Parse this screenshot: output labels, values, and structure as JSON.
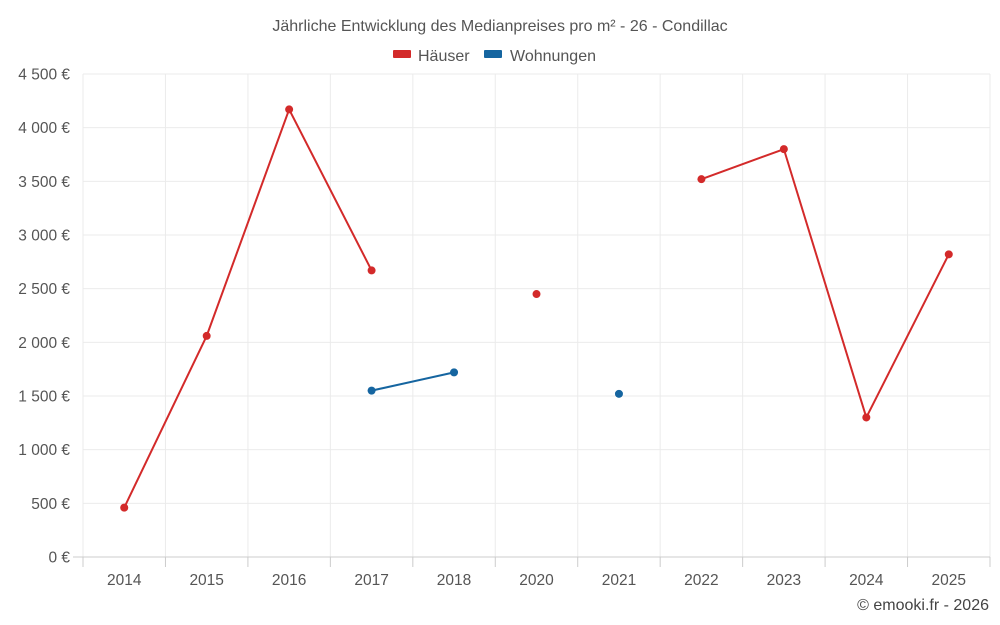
{
  "chart_data": {
    "type": "line",
    "title": "Jährliche Entwicklung des Medianpreises pro m² - 26 - Condillac",
    "categories": [
      "2014",
      "2015",
      "2016",
      "2017",
      "2018",
      "2020",
      "2021",
      "2022",
      "2023",
      "2024",
      "2025"
    ],
    "ylim": [
      0,
      4500
    ],
    "yticks": [
      0,
      500,
      1000,
      1500,
      2000,
      2500,
      3000,
      3500,
      4000,
      4500
    ],
    "ytick_labels": [
      "0 €",
      "500 €",
      "1 000 €",
      "1 500 €",
      "2 000 €",
      "2 500 €",
      "3 000 €",
      "3 500 €",
      "4 000 €",
      "4 500 €"
    ],
    "xlabel": "",
    "ylabel": "",
    "grid": true,
    "legend_position": "top-center",
    "series": [
      {
        "name": "Häuser",
        "color": "#d32a2a",
        "values": [
          460,
          2060,
          4170,
          2670,
          null,
          2450,
          null,
          3520,
          3800,
          1300,
          2820
        ]
      },
      {
        "name": "Wohnungen",
        "color": "#1565a0",
        "values": [
          null,
          null,
          null,
          1550,
          1720,
          null,
          1520,
          null,
          null,
          null,
          null
        ]
      }
    ]
  },
  "credit": "© emooki.fr - 2026"
}
